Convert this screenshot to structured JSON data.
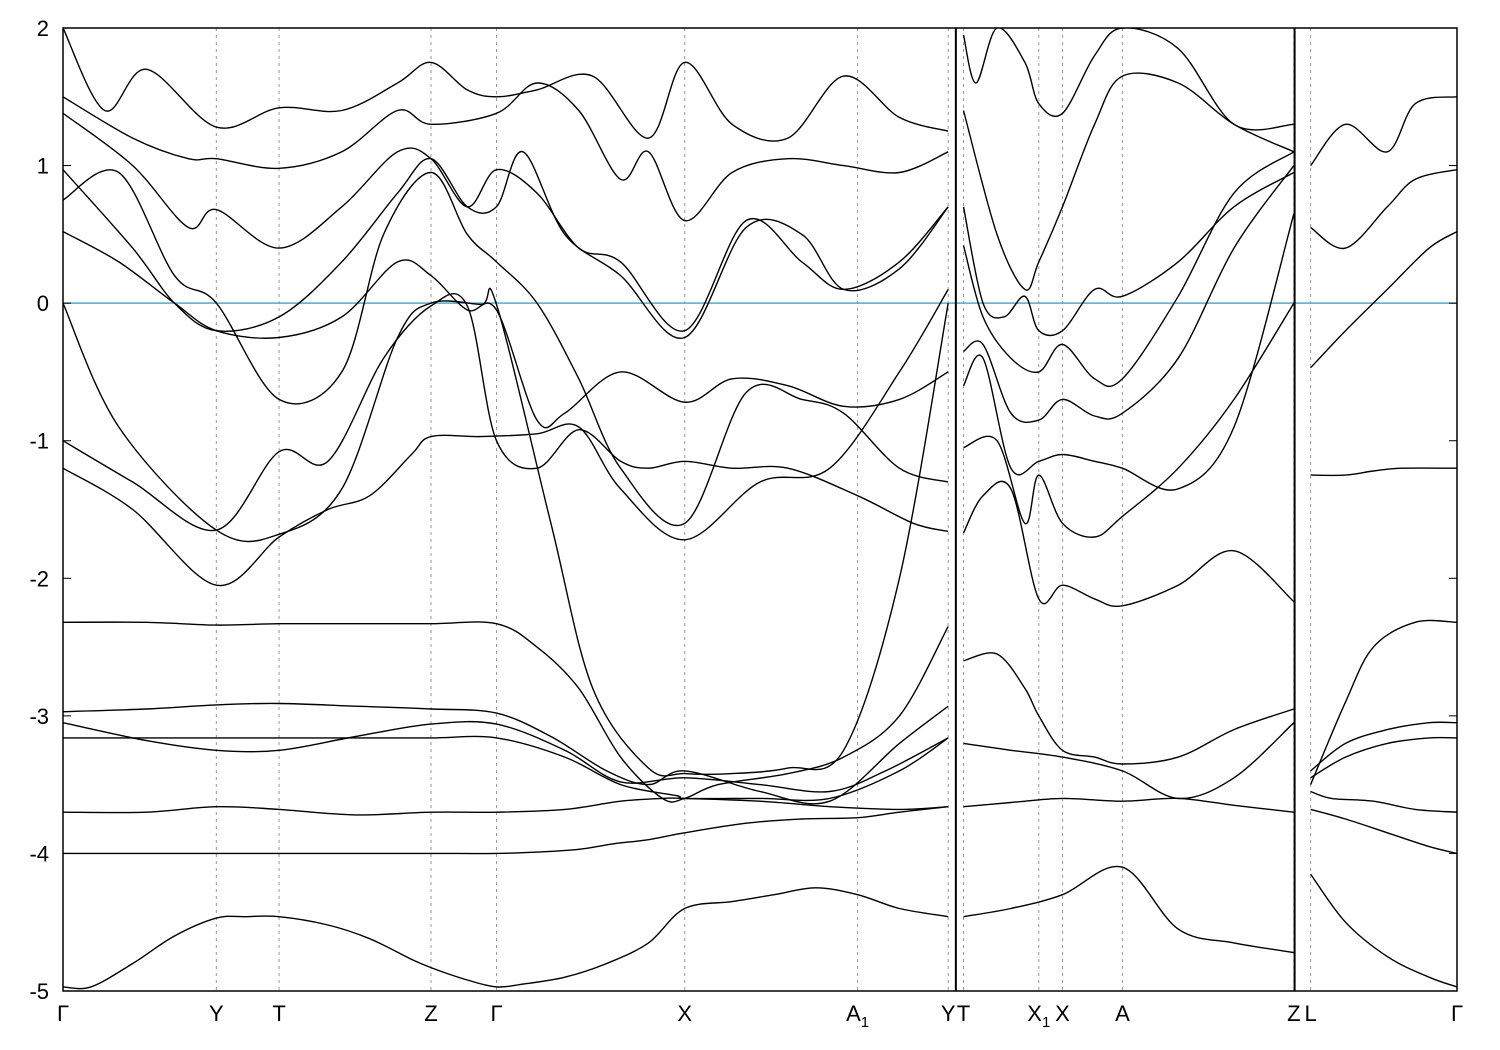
{
  "chart_data": {
    "type": "line",
    "title": "",
    "xlabel": "",
    "ylabel": "",
    "ylim": [
      -5,
      2
    ],
    "yticks": [
      -5,
      -4,
      -3,
      -2,
      -1,
      0,
      1,
      2
    ],
    "ytick_labels": [
      "-5",
      "-4",
      "-3",
      "-2",
      "-1",
      "0",
      "1",
      "2"
    ],
    "kpoints": [
      {
        "label": "Γ",
        "x": 0.0
      },
      {
        "label": "Y",
        "x": 0.11
      },
      {
        "label": "T",
        "x": 0.155
      },
      {
        "label": "Z",
        "x": 0.264
      },
      {
        "label": "Γ",
        "x": 0.311
      },
      {
        "label": "X",
        "x": 0.446
      },
      {
        "label": "A",
        "sub": "1",
        "x": 0.57
      },
      {
        "label": "Y",
        "x": 0.635
      },
      {
        "label": "T",
        "x": 0.646
      },
      {
        "label": "X",
        "sub": "1",
        "x": 0.7
      },
      {
        "label": "X",
        "x": 0.717
      },
      {
        "label": "A",
        "x": 0.76
      },
      {
        "label": "Z",
        "x": 0.883
      },
      {
        "label": "L",
        "x": 0.895
      },
      {
        "label": "Γ",
        "x": 1.0
      }
    ],
    "xlim": [
      0,
      1
    ],
    "path_breaks": [
      0.6405,
      0.8835
    ],
    "fermi_level": 0,
    "colors": {
      "bands": "#000000",
      "fermi": "#5aa8c8",
      "gridline": "#999999"
    },
    "grid": "vertical dashed lines at k-points",
    "series": [
      {
        "x": [
          0.0,
          0.02,
          0.05,
          0.08,
          0.11,
          0.13,
          0.155,
          0.19,
          0.22,
          0.25,
          0.264,
          0.29,
          0.311,
          0.33,
          0.36,
          0.39,
          0.42,
          0.446,
          0.48,
          0.51,
          0.54,
          0.57,
          0.6,
          0.635
        ],
        "y": [
          -4.97,
          -4.97,
          -4.8,
          -4.6,
          -4.47,
          -4.46,
          -4.46,
          -4.52,
          -4.62,
          -4.77,
          -4.83,
          -4.92,
          -4.97,
          -4.95,
          -4.9,
          -4.8,
          -4.65,
          -4.4,
          -4.35,
          -4.3,
          -4.25,
          -4.3,
          -4.4,
          -4.46
        ]
      },
      {
        "x": [
          0.0,
          0.06,
          0.11,
          0.155,
          0.21,
          0.264,
          0.311,
          0.34,
          0.37,
          0.395,
          0.42,
          0.446,
          0.49,
          0.53,
          0.57,
          0.6,
          0.635
        ],
        "y": [
          -4.0,
          -4.0,
          -4.0,
          -4.0,
          -4.0,
          -4.0,
          -4.0,
          -3.99,
          -3.97,
          -3.93,
          -3.9,
          -3.85,
          -3.78,
          -3.75,
          -3.74,
          -3.7,
          -3.66
        ]
      },
      {
        "x": [
          0.0,
          0.06,
          0.11,
          0.155,
          0.21,
          0.264,
          0.311,
          0.36,
          0.4,
          0.43,
          0.446,
          0.5,
          0.55,
          0.6,
          0.635
        ],
        "y": [
          -3.7,
          -3.7,
          -3.66,
          -3.68,
          -3.72,
          -3.7,
          -3.7,
          -3.68,
          -3.62,
          -3.6,
          -3.6,
          -3.62,
          -3.66,
          -3.68,
          -3.66
        ]
      },
      {
        "x": [
          0.0,
          0.06,
          0.11,
          0.155,
          0.21,
          0.264,
          0.311,
          0.36,
          0.4,
          0.44,
          0.446,
          0.5,
          0.55,
          0.6,
          0.635
        ],
        "y": [
          -3.16,
          -3.16,
          -3.16,
          -3.16,
          -3.16,
          -3.16,
          -3.16,
          -3.3,
          -3.5,
          -3.58,
          -3.6,
          -3.6,
          -3.6,
          -3.4,
          -3.16
        ]
      },
      {
        "x": [
          0.0,
          0.06,
          0.11,
          0.155,
          0.21,
          0.264,
          0.311,
          0.36,
          0.4,
          0.446,
          0.5,
          0.55,
          0.59,
          0.635
        ],
        "y": [
          -3.05,
          -3.18,
          -3.25,
          -3.25,
          -3.15,
          -3.06,
          -3.06,
          -3.25,
          -3.48,
          -3.45,
          -3.5,
          -3.55,
          -3.4,
          -3.16
        ]
      },
      {
        "x": [
          0.0,
          0.06,
          0.11,
          0.155,
          0.21,
          0.264,
          0.311,
          0.35,
          0.39,
          0.42,
          0.446,
          0.5,
          0.55,
          0.6,
          0.635
        ],
        "y": [
          -2.97,
          -2.95,
          -2.92,
          -2.91,
          -2.93,
          -2.95,
          -2.98,
          -3.15,
          -3.4,
          -3.5,
          -3.4,
          -3.55,
          -3.62,
          -3.2,
          -2.93
        ]
      },
      {
        "x": [
          0.0,
          0.06,
          0.11,
          0.155,
          0.21,
          0.264,
          0.311,
          0.34,
          0.37,
          0.4,
          0.43,
          0.446,
          0.47,
          0.52,
          0.56,
          0.6,
          0.635
        ],
        "y": [
          -2.32,
          -2.32,
          -2.34,
          -2.33,
          -2.33,
          -2.33,
          -2.33,
          -2.5,
          -2.8,
          -3.3,
          -3.6,
          -3.6,
          -3.5,
          -3.42,
          -3.3,
          -3.0,
          -2.35
        ]
      },
      {
        "x": [
          0.0,
          0.05,
          0.11,
          0.155,
          0.19,
          0.22,
          0.25,
          0.264,
          0.3,
          0.34,
          0.37,
          0.4,
          0.446,
          0.5,
          0.55,
          0.6,
          0.635
        ],
        "y": [
          -1.2,
          -1.5,
          -2.05,
          -1.7,
          -1.5,
          -1.4,
          -1.1,
          -0.97,
          -0.97,
          -0.95,
          -0.9,
          -1.35,
          -1.72,
          -1.3,
          -1.2,
          -0.5,
          0.1
        ]
      },
      {
        "x": [
          0.0,
          0.05,
          0.11,
          0.155,
          0.19,
          0.23,
          0.264,
          0.29,
          0.311,
          0.34,
          0.37,
          0.4,
          0.42,
          0.446,
          0.48,
          0.52,
          0.57,
          0.61,
          0.635
        ],
        "y": [
          -1.0,
          -1.3,
          -1.65,
          -1.08,
          -1.15,
          -0.4,
          -0.02,
          -0.02,
          -1.0,
          -1.2,
          -0.92,
          -1.15,
          -1.2,
          -1.15,
          -1.2,
          -1.2,
          -1.4,
          -1.6,
          -1.66
        ]
      },
      {
        "x": [
          0.0,
          0.04,
          0.11,
          0.155,
          0.2,
          0.24,
          0.264,
          0.3,
          0.311,
          0.35,
          0.38,
          0.42,
          0.446,
          0.48,
          0.52,
          0.56,
          0.6,
          0.635
        ],
        "y": [
          0.0,
          -0.9,
          -1.65,
          -1.68,
          -1.35,
          -0.25,
          0.0,
          -0.01,
          -0.01,
          -1.6,
          -2.8,
          -3.38,
          -3.42,
          -3.42,
          -3.38,
          -3.25,
          -2.0,
          0.0
        ]
      },
      {
        "x": [
          0.0,
          0.04,
          0.08,
          0.11,
          0.155,
          0.2,
          0.24,
          0.264,
          0.29,
          0.311,
          0.34,
          0.36,
          0.4,
          0.446,
          0.48,
          0.52,
          0.56,
          0.6,
          0.635
        ],
        "y": [
          0.52,
          0.3,
          0.0,
          -0.2,
          -0.25,
          -0.1,
          0.3,
          0.2,
          -0.05,
          -0.05,
          -0.85,
          -0.8,
          -0.5,
          -0.72,
          -0.55,
          -0.6,
          -0.75,
          -0.7,
          -0.5
        ]
      },
      {
        "x": [
          0.0,
          0.04,
          0.08,
          0.11,
          0.155,
          0.2,
          0.23,
          0.264,
          0.29,
          0.311,
          0.34,
          0.37,
          0.4,
          0.446,
          0.49,
          0.53,
          0.56,
          0.6,
          0.635
        ],
        "y": [
          0.75,
          0.95,
          0.2,
          0.0,
          -0.7,
          -0.5,
          0.5,
          0.95,
          0.5,
          0.3,
          0.0,
          -0.55,
          -1.2,
          -1.6,
          -0.65,
          -0.7,
          -0.8,
          -1.2,
          -1.3
        ]
      },
      {
        "x": [
          0.0,
          0.05,
          0.08,
          0.11,
          0.155,
          0.2,
          0.24,
          0.264,
          0.29,
          0.311,
          0.33,
          0.36,
          0.4,
          0.446,
          0.49,
          0.53,
          0.56,
          0.6,
          0.635
        ],
        "y": [
          0.97,
          0.4,
          0.0,
          -0.2,
          -0.1,
          0.3,
          0.8,
          1.05,
          0.7,
          0.7,
          1.1,
          0.5,
          0.2,
          -0.25,
          0.55,
          0.5,
          0.1,
          0.25,
          0.7
        ]
      },
      {
        "x": [
          0.0,
          0.05,
          0.09,
          0.11,
          0.155,
          0.2,
          0.24,
          0.264,
          0.29,
          0.311,
          0.34,
          0.37,
          0.4,
          0.446,
          0.49,
          0.53,
          0.56,
          0.6,
          0.635
        ],
        "y": [
          1.38,
          1.0,
          0.55,
          0.68,
          0.4,
          0.7,
          1.1,
          1.05,
          0.7,
          0.97,
          0.8,
          0.4,
          0.3,
          -0.2,
          0.6,
          0.3,
          0.1,
          0.3,
          0.7
        ]
      },
      {
        "x": [
          0.0,
          0.05,
          0.09,
          0.11,
          0.155,
          0.2,
          0.24,
          0.264,
          0.311,
          0.34,
          0.37,
          0.4,
          0.42,
          0.446,
          0.48,
          0.52,
          0.56,
          0.6,
          0.635
        ],
        "y": [
          1.5,
          1.2,
          1.05,
          1.05,
          0.98,
          1.1,
          1.4,
          1.3,
          1.38,
          1.6,
          1.4,
          0.9,
          1.1,
          0.6,
          0.95,
          1.05,
          1.0,
          0.95,
          1.1
        ]
      },
      {
        "x": [
          0.0,
          0.03,
          0.06,
          0.11,
          0.155,
          0.2,
          0.24,
          0.264,
          0.29,
          0.311,
          0.34,
          0.38,
          0.42,
          0.446,
          0.48,
          0.52,
          0.56,
          0.6,
          0.635
        ],
        "y": [
          2.0,
          1.4,
          1.7,
          1.28,
          1.42,
          1.4,
          1.6,
          1.75,
          1.55,
          1.5,
          1.55,
          1.65,
          1.2,
          1.75,
          1.3,
          1.2,
          1.65,
          1.35,
          1.25
        ]
      },
      {
        "x": [
          0.646,
          0.67,
          0.69,
          0.7,
          0.717,
          0.74,
          0.76,
          0.8,
          0.84,
          0.883
        ],
        "y": [
          -2.6,
          -2.55,
          -2.8,
          -3.0,
          -3.25,
          -3.3,
          -3.35,
          -3.3,
          -3.1,
          -2.95
        ]
      },
      {
        "x": [
          0.646,
          0.66,
          0.68,
          0.7,
          0.717,
          0.74,
          0.76,
          0.8,
          0.84,
          0.883
        ],
        "y": [
          -1.67,
          -1.4,
          -1.35,
          -2.15,
          -2.05,
          -2.15,
          -2.2,
          -2.05,
          -1.8,
          -2.17
        ]
      },
      {
        "x": [
          0.646,
          0.67,
          0.69,
          0.7,
          0.717,
          0.74,
          0.76,
          0.8,
          0.84,
          0.883
        ],
        "y": [
          -1.05,
          -1.0,
          -1.6,
          -1.25,
          -1.6,
          -1.7,
          -1.55,
          -1.2,
          -0.7,
          0.0
        ]
      },
      {
        "x": [
          0.646,
          0.66,
          0.68,
          0.7,
          0.717,
          0.74,
          0.76,
          0.8,
          0.84,
          0.883
        ],
        "y": [
          -0.6,
          -0.4,
          -1.2,
          -1.15,
          -1.1,
          -1.15,
          -1.2,
          -1.35,
          -0.9,
          0.65
        ]
      },
      {
        "x": [
          0.646,
          0.66,
          0.68,
          0.7,
          0.717,
          0.74,
          0.76,
          0.8,
          0.84,
          0.883
        ],
        "y": [
          -0.35,
          -0.3,
          -0.8,
          -0.85,
          -0.7,
          -0.82,
          -0.8,
          -0.4,
          0.4,
          1.0
        ]
      },
      {
        "x": [
          0.646,
          0.66,
          0.68,
          0.7,
          0.717,
          0.74,
          0.76,
          0.8,
          0.84,
          0.883
        ],
        "y": [
          0.42,
          -0.1,
          -0.4,
          -0.5,
          -0.3,
          -0.55,
          -0.55,
          0.05,
          0.8,
          1.1
        ]
      },
      {
        "x": [
          0.646,
          0.66,
          0.675,
          0.69,
          0.7,
          0.717,
          0.74,
          0.76,
          0.8,
          0.84,
          0.883
        ],
        "y": [
          0.7,
          0.0,
          -0.1,
          0.05,
          -0.2,
          -0.2,
          0.1,
          0.05,
          0.3,
          0.7,
          0.95
        ]
      },
      {
        "x": [
          0.646,
          0.67,
          0.69,
          0.7,
          0.717,
          0.74,
          0.76,
          0.8,
          0.84,
          0.883
        ],
        "y": [
          1.4,
          0.5,
          0.1,
          0.3,
          0.7,
          1.3,
          1.65,
          1.6,
          1.3,
          1.1
        ]
      },
      {
        "x": [
          0.646,
          0.655,
          0.67,
          0.69,
          0.7,
          0.717,
          0.74,
          0.76,
          0.8,
          0.84,
          0.883
        ],
        "y": [
          1.95,
          1.6,
          2.0,
          1.75,
          1.45,
          1.38,
          1.8,
          2.0,
          1.85,
          1.3,
          1.3
        ]
      },
      {
        "x": [
          0.646,
          0.68,
          0.717,
          0.76,
          0.8,
          0.84,
          0.883
        ],
        "y": [
          -3.2,
          -3.25,
          -3.3,
          -3.4,
          -3.6,
          -3.45,
          -3.05
        ]
      },
      {
        "x": [
          0.646,
          0.68,
          0.717,
          0.76,
          0.8,
          0.84,
          0.883
        ],
        "y": [
          -3.66,
          -3.63,
          -3.6,
          -3.62,
          -3.6,
          -3.65,
          -3.7
        ]
      },
      {
        "x": [
          0.646,
          0.68,
          0.717,
          0.76,
          0.8,
          0.84,
          0.883
        ],
        "y": [
          -4.46,
          -4.4,
          -4.3,
          -4.1,
          -4.55,
          -4.65,
          -4.72
        ]
      },
      {
        "x": [
          0.895,
          0.92,
          0.95,
          0.98,
          1.0
        ],
        "y": [
          -4.15,
          -4.5,
          -4.75,
          -4.9,
          -4.97
        ]
      },
      {
        "x": [
          0.895,
          0.92,
          0.95,
          0.98,
          1.0
        ],
        "y": [
          -3.68,
          -3.75,
          -3.85,
          -3.95,
          -4.0
        ]
      },
      {
        "x": [
          0.895,
          0.91,
          0.94,
          0.97,
          1.0
        ],
        "y": [
          -3.55,
          -3.6,
          -3.62,
          -3.68,
          -3.7
        ]
      },
      {
        "x": [
          0.895,
          0.92,
          0.95,
          0.98,
          1.0
        ],
        "y": [
          -3.45,
          -3.3,
          -3.2,
          -3.16,
          -3.16
        ]
      },
      {
        "x": [
          0.895,
          0.92,
          0.95,
          0.98,
          1.0
        ],
        "y": [
          -3.4,
          -3.2,
          -3.1,
          -3.05,
          -3.05
        ]
      },
      {
        "x": [
          0.895,
          0.92,
          0.94,
          0.97,
          1.0
        ],
        "y": [
          -3.5,
          -2.9,
          -2.5,
          -2.32,
          -2.32
        ]
      },
      {
        "x": [
          0.895,
          0.92,
          0.94,
          0.96,
          1.0
        ],
        "y": [
          -1.25,
          -1.25,
          -1.22,
          -1.2,
          -1.2
        ]
      },
      {
        "x": [
          0.895,
          0.92,
          0.95,
          0.98,
          1.0
        ],
        "y": [
          -0.47,
          -0.2,
          0.1,
          0.4,
          0.52
        ]
      },
      {
        "x": [
          0.895,
          0.92,
          0.95,
          0.97,
          1.0
        ],
        "y": [
          0.55,
          0.4,
          0.7,
          0.9,
          0.97
        ]
      },
      {
        "x": [
          0.895,
          0.92,
          0.95,
          0.97,
          1.0
        ],
        "y": [
          1.0,
          1.3,
          1.1,
          1.45,
          1.5
        ]
      }
    ]
  }
}
